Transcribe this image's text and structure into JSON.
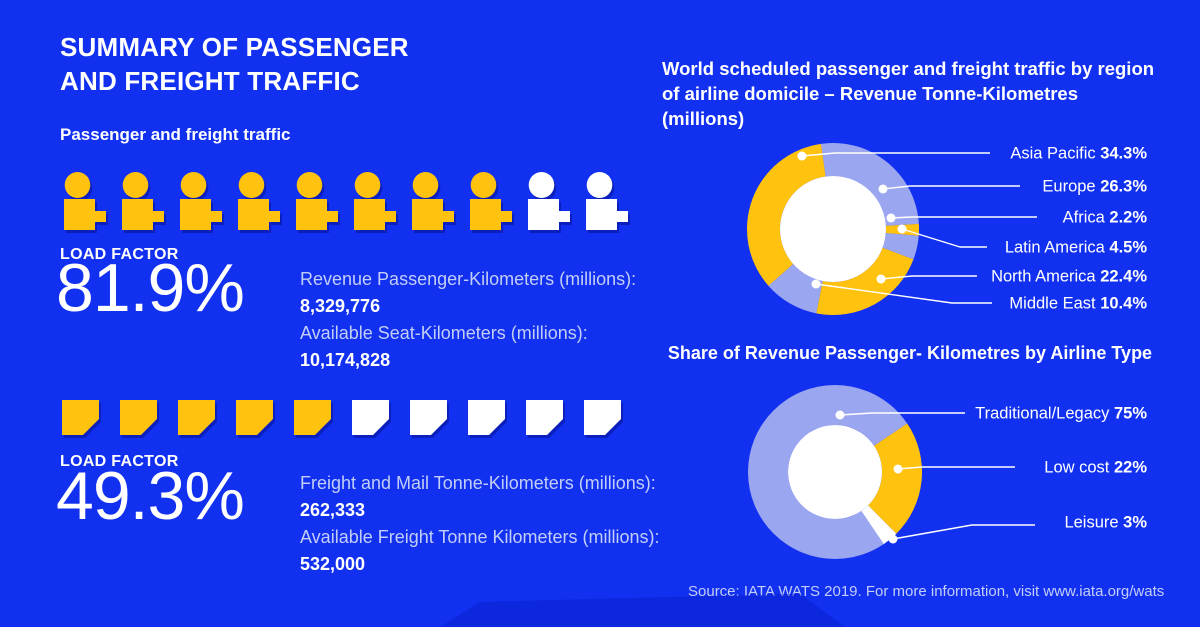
{
  "header": {
    "title_line1": "SUMMARY OF PASSENGER",
    "title_line2": "AND FREIGHT TRAFFIC"
  },
  "left_panel": {
    "section_title": "Passenger and freight traffic",
    "passenger": {
      "icon_name": "person-icon",
      "icons_total": 10,
      "icons_highlighted": 8,
      "load_factor_label": "LOAD FACTOR",
      "load_factor_value": "81.9%",
      "stats": [
        {
          "label": "Revenue Passenger-Kilometers (millions):",
          "value": "8,329,776"
        },
        {
          "label": "Available Seat-Kilometers (millions):",
          "value": "10,174,828"
        }
      ]
    },
    "freight": {
      "icon_name": "cargo-box-icon",
      "icons_total": 10,
      "icons_highlighted": 5,
      "load_factor_label": "LOAD FACTOR",
      "load_factor_value": "49.3%",
      "stats": [
        {
          "label": "Freight and Mail Tonne-Kilometers (millions):",
          "value": "262,333"
        },
        {
          "label": "Available Freight Tonne Kilometers (millions):",
          "value": "532,000"
        }
      ]
    }
  },
  "right_panel": {
    "chart1_title_line1": "World scheduled passenger and freight traffic by region",
    "chart1_title_line2": "of airline domicile – Revenue Tonne-Kilometres (millions)",
    "chart2_title": "Share of Revenue Passenger- Kilometres by Airline Type",
    "source": "Source: IATA WATS 2019. For more information, visit www.iata.org/wats"
  },
  "colors": {
    "background": "#1130F0",
    "accent_yellow": "#FFC20E",
    "accent_periwinkle": "#9BA6F0",
    "white": "#FFFFFF",
    "dim_text": "#C3CEF7",
    "icon_shadow": "#0A1CB8"
  },
  "chart_data": [
    {
      "type": "pie",
      "variant": "donut",
      "title": "World scheduled passenger and freight traffic by region of airline domicile – Revenue Tonne-Kilometres (millions)",
      "unit": "%",
      "legend_position": "right",
      "segments": [
        {
          "label": "Asia Pacific",
          "value": 34.3,
          "color": "#FFC20E"
        },
        {
          "label": "Europe",
          "value": 26.3,
          "color": "#9BA6F0"
        },
        {
          "label": "Africa",
          "value": 2.2,
          "color": "#FFC20E"
        },
        {
          "label": "Latin America",
          "value": 4.5,
          "color": "#9BA6F0"
        },
        {
          "label": "North America",
          "value": 22.4,
          "color": "#FFC20E"
        },
        {
          "label": "Middle East",
          "value": 10.4,
          "color": "#9BA6F0"
        }
      ]
    },
    {
      "type": "pie",
      "variant": "donut",
      "title": "Share of Revenue Passenger- Kilometres by Airline Type",
      "unit": "%",
      "legend_position": "right",
      "segments": [
        {
          "label": "Traditional/Legacy",
          "value": 75,
          "color": "#9BA6F0"
        },
        {
          "label": "Low cost",
          "value": 22,
          "color": "#FFC20E"
        },
        {
          "label": "Leisure",
          "value": 3,
          "color": "#FFFFFF"
        }
      ]
    }
  ]
}
